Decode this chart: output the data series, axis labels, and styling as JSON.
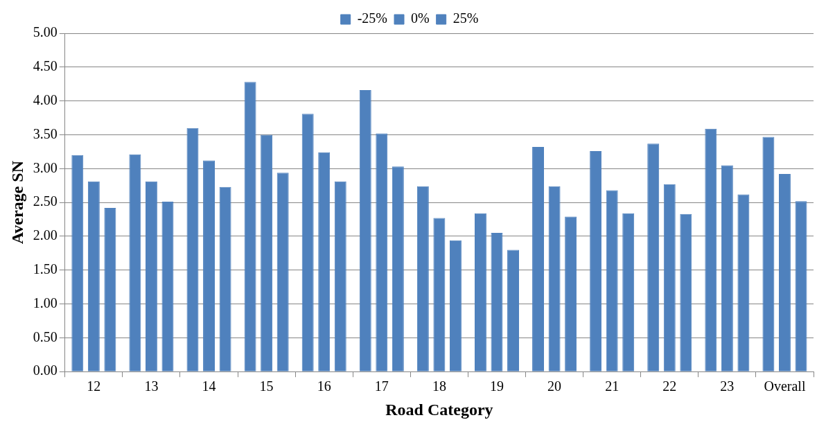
{
  "chart_data": {
    "type": "bar",
    "xlabel": "Road Category",
    "ylabel": "Average SN",
    "categories": [
      "12",
      "13",
      "14",
      "15",
      "16",
      "17",
      "18",
      "19",
      "20",
      "21",
      "22",
      "23",
      "Overall"
    ],
    "series": [
      {
        "name": "-25%",
        "color": "#4f81bd",
        "values": [
          3.2,
          3.21,
          3.6,
          4.28,
          3.81,
          4.16,
          2.74,
          2.34,
          3.32,
          3.26,
          3.37,
          3.59,
          3.47
        ]
      },
      {
        "name": "0%",
        "color": "#4f81bd",
        "values": [
          2.81,
          2.81,
          3.12,
          3.5,
          3.24,
          3.52,
          2.27,
          2.05,
          2.74,
          2.68,
          2.77,
          3.05,
          2.92
        ]
      },
      {
        "name": "25%",
        "color": "#4f81bd",
        "values": [
          2.42,
          2.51,
          2.73,
          2.94,
          2.81,
          3.03,
          1.94,
          1.8,
          2.29,
          2.34,
          2.33,
          2.62,
          2.52
        ]
      }
    ],
    "ylim": [
      0,
      5
    ],
    "yticks": [
      {
        "value": 0,
        "label": "0.00"
      },
      {
        "value": 0.5,
        "label": "0.50"
      },
      {
        "value": 1,
        "label": "1.00"
      },
      {
        "value": 1.5,
        "label": "1.50"
      },
      {
        "value": 2,
        "label": "2.00"
      },
      {
        "value": 2.5,
        "label": "2.50"
      },
      {
        "value": 3,
        "label": "3.00"
      },
      {
        "value": 3.5,
        "label": "3.50"
      },
      {
        "value": 4,
        "label": "4.00"
      },
      {
        "value": 4.5,
        "label": "4.50"
      },
      {
        "value": 5,
        "label": "5.00"
      }
    ],
    "grid": "y",
    "legend": "top"
  }
}
